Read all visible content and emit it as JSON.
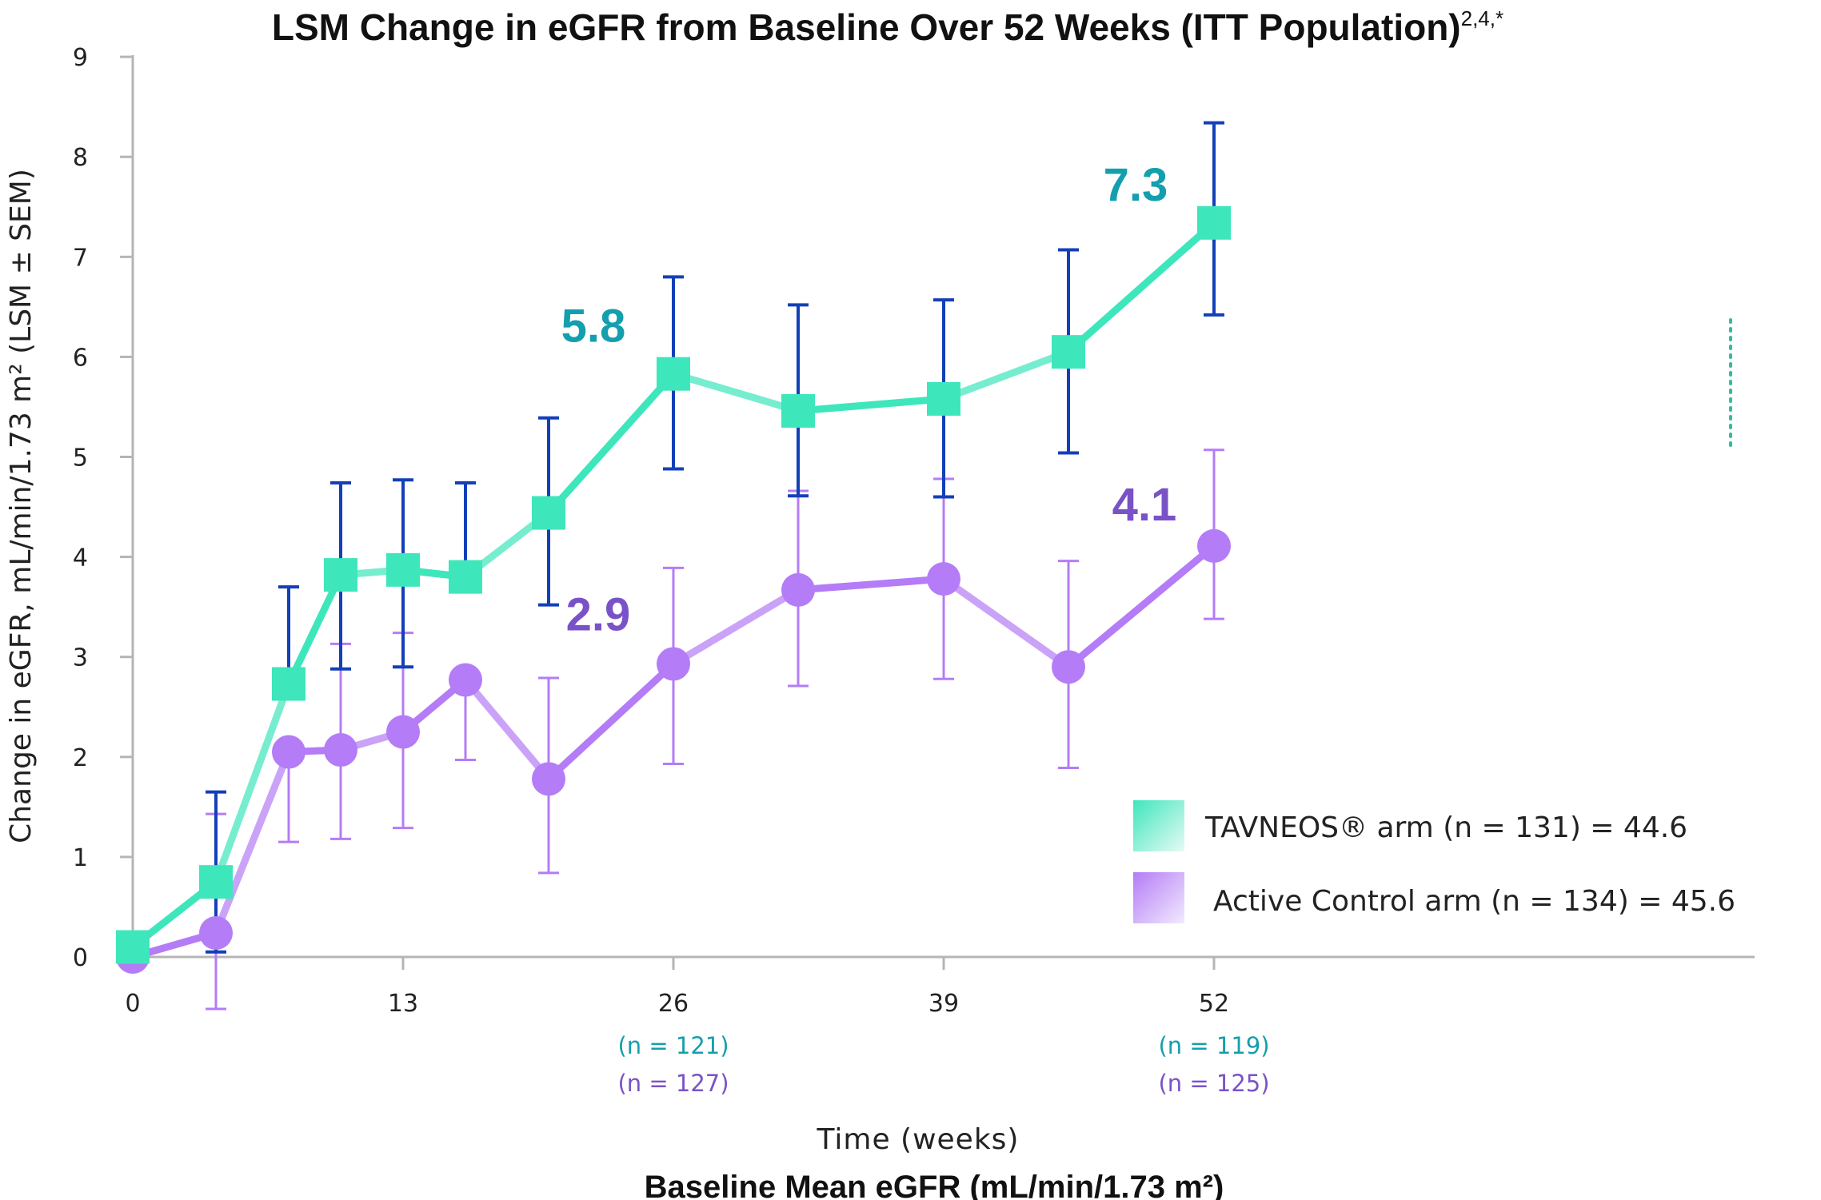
{
  "title": "LSM Change in eGFR from Baseline Over 52 Weeks (ITT Population)",
  "title_sup": "2,4,*",
  "subtitle": "Baseline Mean eGFR (mL/min/1.73 m²)",
  "colors": {
    "tavneos": "#3ee6bb",
    "tavneos_label": "#149fae",
    "tavneos_error": "#1340b8",
    "control": "#b47cf6",
    "control_label": "#7a52c8",
    "control_error": "#b47cf6"
  },
  "chart_data": {
    "type": "line",
    "title": "LSM Change in eGFR from Baseline Over 52 Weeks (ITT Population)",
    "xlabel": "Time (weeks)",
    "ylabel": "Change in eGFR, mL/min/1.73 m² (LSM ± SEM)",
    "xlim": [
      0,
      54
    ],
    "ylim": [
      0,
      9
    ],
    "x_ticks": [
      "0",
      "13",
      "26",
      "39",
      "52"
    ],
    "y_ticks": [
      "0",
      "1",
      "2",
      "3",
      "4",
      "5",
      "6",
      "7",
      "8",
      "9"
    ],
    "grid": false,
    "legend_position": "bottom-right",
    "series": [
      {
        "name": "TAVNEOS® arm (n = 131) = 44.6",
        "marker": "square",
        "x": [
          0,
          4,
          7.5,
          10,
          13,
          16,
          20,
          26,
          32,
          39,
          45,
          52
        ],
        "y": [
          0.1,
          0.75,
          2.73,
          3.82,
          3.87,
          3.8,
          4.44,
          5.83,
          5.46,
          5.58,
          6.05,
          7.34
        ],
        "err_upper": [
          null,
          1.65,
          3.7,
          4.74,
          4.77,
          4.74,
          5.39,
          6.8,
          6.52,
          6.57,
          7.07,
          8.34
        ],
        "err_lower": [
          null,
          0.05,
          null,
          2.88,
          2.9,
          null,
          3.52,
          4.88,
          4.61,
          4.6,
          5.04,
          6.42
        ]
      },
      {
        "name": "Active Control arm (n = 134) = 45.6",
        "marker": "circle",
        "x": [
          0,
          4,
          7.5,
          10,
          13,
          16,
          20,
          26,
          32,
          39,
          45,
          52
        ],
        "y": [
          0.0,
          0.24,
          2.05,
          2.07,
          2.25,
          2.77,
          1.78,
          2.93,
          3.67,
          3.78,
          2.9,
          4.11
        ],
        "err_upper": [
          null,
          1.43,
          null,
          3.13,
          3.24,
          null,
          2.79,
          3.89,
          4.66,
          4.78,
          3.96,
          5.07
        ],
        "err_lower": [
          null,
          -0.52,
          1.15,
          1.18,
          1.29,
          1.97,
          0.84,
          1.93,
          2.71,
          2.78,
          1.89,
          3.38
        ]
      }
    ],
    "annotations": [
      {
        "text": "5.8",
        "series": 0,
        "x": 26,
        "y": 5.83
      },
      {
        "text": "7.3",
        "series": 0,
        "x": 52,
        "y": 7.34
      },
      {
        "text": "2.9",
        "series": 1,
        "x": 26,
        "y": 2.93
      },
      {
        "text": "4.1",
        "series": 1,
        "x": 52,
        "y": 4.11
      }
    ],
    "n_labels": [
      {
        "x": 26,
        "tavneos": "(n   = 121)",
        "control": "(n   = 127)"
      },
      {
        "x": 52,
        "tavneos": "(n   = 119)",
        "control": "(n   = 125)"
      }
    ]
  }
}
